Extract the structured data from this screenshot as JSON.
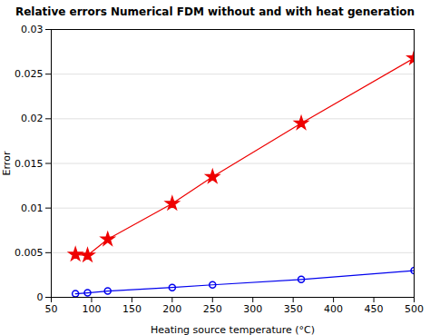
{
  "chart_data": {
    "type": "line",
    "title": "Relative errors Numerical FDM without and with heat generation",
    "xlabel": "Heating source temperature (°C)",
    "ylabel": "Error",
    "x": [
      80,
      95,
      120,
      200,
      250,
      360,
      500
    ],
    "series": [
      {
        "color": "#0000ee",
        "marker": "circle",
        "line_style": "solid",
        "values": [
          0.0004,
          0.0005,
          0.0007,
          0.0011,
          0.0014,
          0.002,
          0.003
        ]
      },
      {
        "color": "#ee0000",
        "marker": "star",
        "line_style": "solid",
        "values": [
          0.0048,
          0.0047,
          0.0065,
          0.0105,
          0.0135,
          0.0195,
          0.0268
        ]
      }
    ],
    "xlim": [
      50,
      500
    ],
    "ylim": [
      0,
      0.03
    ],
    "xticks": [
      50,
      100,
      150,
      200,
      250,
      300,
      350,
      400,
      450,
      500
    ],
    "yticks": [
      0,
      0.005,
      0.01,
      0.015,
      0.02,
      0.025,
      0.03
    ],
    "grid": "y"
  }
}
